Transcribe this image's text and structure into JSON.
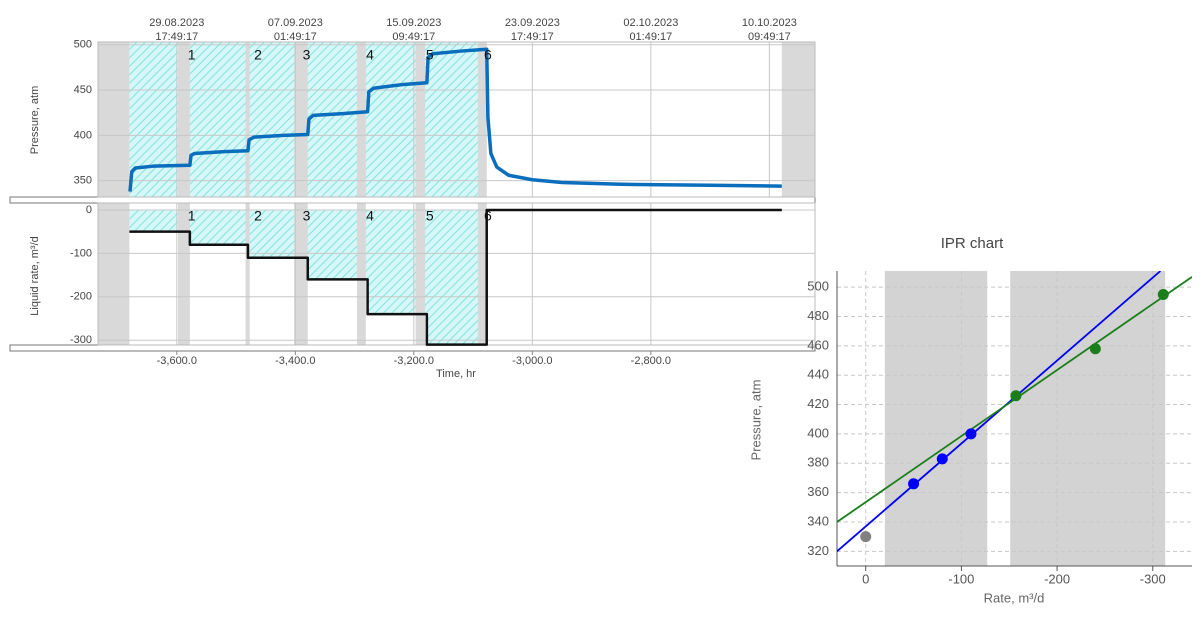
{
  "chart_data": [
    {
      "type": "line",
      "y_label": "Pressure, atm",
      "color": "#0a6ebd",
      "xlim": [
        -3733,
        -2523
      ],
      "ylim": [
        332,
        503
      ],
      "yticks": [
        350,
        400,
        450,
        500
      ],
      "grid": true,
      "xticks": [
        {
          "value": -3600,
          "date": "29.08.2023",
          "time": "17:49:17"
        },
        {
          "value": -3400,
          "date": "07.09.2023",
          "time": "01:49:17"
        },
        {
          "value": -3200,
          "date": "15.09.2023",
          "time": "09:49:17"
        },
        {
          "value": -3000,
          "date": "23.09.2023",
          "time": "17:49:17"
        },
        {
          "value": -2800,
          "date": "02.10.2023",
          "time": "01:49:17"
        },
        {
          "value": -2600,
          "date": "10.10.2023",
          "time": "09:49:17"
        }
      ],
      "x": [
        -3679,
        -3676,
        -3670,
        -3640,
        -3578,
        -3576,
        -3570,
        -3520,
        -3480,
        -3478,
        -3470,
        -3420,
        -3379,
        -3377,
        -3370,
        -3320,
        -3278,
        -3276,
        -3268,
        -3220,
        -3178,
        -3176,
        -3168,
        -3120,
        -3077,
        -3075,
        -3070,
        -3060,
        -3040,
        -3000,
        -2950,
        -2850,
        -2700,
        -2579
      ],
      "values": [
        338,
        360,
        364,
        366,
        367,
        378,
        380,
        382,
        383,
        395,
        398,
        400,
        401,
        418,
        422,
        424,
        426,
        448,
        452,
        456,
        458,
        486,
        490,
        493,
        495,
        420,
        380,
        365,
        356,
        351,
        348,
        346,
        345,
        344
      ],
      "shaded_regions": [
        [
          -3680,
          -3077
        ]
      ],
      "grey_regions": [
        [
          -3733,
          -3680
        ],
        [
          -3598,
          -3578
        ],
        [
          -3484,
          -3477
        ],
        [
          -3402,
          -3379
        ],
        [
          -3296,
          -3281
        ],
        [
          -3197,
          -3181
        ],
        [
          -3092,
          -3077
        ],
        [
          -2579,
          -2523
        ]
      ],
      "steps": [
        {
          "label": "1",
          "x": -3575
        },
        {
          "label": "2",
          "x": -3463
        },
        {
          "label": "3",
          "x": -3381
        },
        {
          "label": "4",
          "x": -3274
        },
        {
          "label": "5",
          "x": -3173
        },
        {
          "label": "6",
          "x": -3075
        }
      ]
    },
    {
      "type": "line",
      "x_label": "Time, hr",
      "y_label": "Liquid rate, m³/d",
      "color": "#111111",
      "xlim": [
        -3733,
        -2523
      ],
      "ylim": [
        -311,
        16
      ],
      "yticks": [
        0,
        -100,
        -200,
        -300
      ],
      "grid": true,
      "xticks": [
        {
          "value": -3600,
          "label": "-3,600.0"
        },
        {
          "value": -3400,
          "label": "-3,400.0"
        },
        {
          "value": -3200,
          "label": "-3,200.0"
        },
        {
          "value": -3000,
          "label": "-3,000.0"
        },
        {
          "value": -2800,
          "label": "-2,800.0"
        }
      ],
      "x": [
        -3680,
        -3578,
        -3578,
        -3480,
        -3480,
        -3379,
        -3379,
        -3278,
        -3278,
        -3178,
        -3178,
        -3077,
        -3077,
        -2579
      ],
      "values": [
        -50,
        -50,
        -80,
        -80,
        -110,
        -110,
        -160,
        -160,
        -240,
        -240,
        -310,
        -310,
        0,
        0
      ],
      "shaded_regions": [
        [
          -3680,
          -3077
        ]
      ],
      "shade_to_line": true,
      "grey_regions": [
        [
          -3733,
          -3680
        ],
        [
          -3598,
          -3578
        ],
        [
          -3484,
          -3477
        ],
        [
          -3402,
          -3379
        ],
        [
          -3296,
          -3281
        ],
        [
          -3197,
          -3181
        ],
        [
          -3092,
          -3077
        ]
      ],
      "steps": [
        {
          "label": "1",
          "x": -3575
        },
        {
          "label": "2",
          "x": -3463
        },
        {
          "label": "3",
          "x": -3381
        },
        {
          "label": "4",
          "x": -3274
        },
        {
          "label": "5",
          "x": -3173
        },
        {
          "label": "6",
          "x": -3075
        }
      ]
    },
    {
      "type": "scatter",
      "title": "IPR chart",
      "x_label": "Rate, m³/d",
      "y_label": "Pressure, atm",
      "xlim": [
        30,
        -341
      ],
      "xticks": [
        0,
        -100,
        -200,
        -300
      ],
      "ylim": [
        310,
        511
      ],
      "yticks": [
        320,
        340,
        360,
        380,
        400,
        420,
        440,
        460,
        480,
        500
      ],
      "grid": true,
      "grey_regions": [
        [
          -20,
          -127
        ],
        [
          -151,
          -313
        ]
      ],
      "series": [
        {
          "color": "#0000ff",
          "x": [
            -50,
            -80,
            -110
          ],
          "values": [
            366,
            383,
            400
          ]
        },
        {
          "color": "#1a7f1a",
          "x": [
            -157,
            -240,
            -311
          ],
          "values": [
            426,
            458,
            495
          ]
        },
        {
          "color": "#808080",
          "x": [
            0
          ],
          "values": [
            330
          ]
        }
      ],
      "lines": [
        {
          "color": "#0000ff",
          "x": [
            30,
            -308
          ],
          "values": [
            320,
            511
          ]
        },
        {
          "color": "#1a7f1a",
          "x": [
            30,
            -341
          ],
          "values": [
            340,
            507
          ]
        }
      ]
    }
  ]
}
